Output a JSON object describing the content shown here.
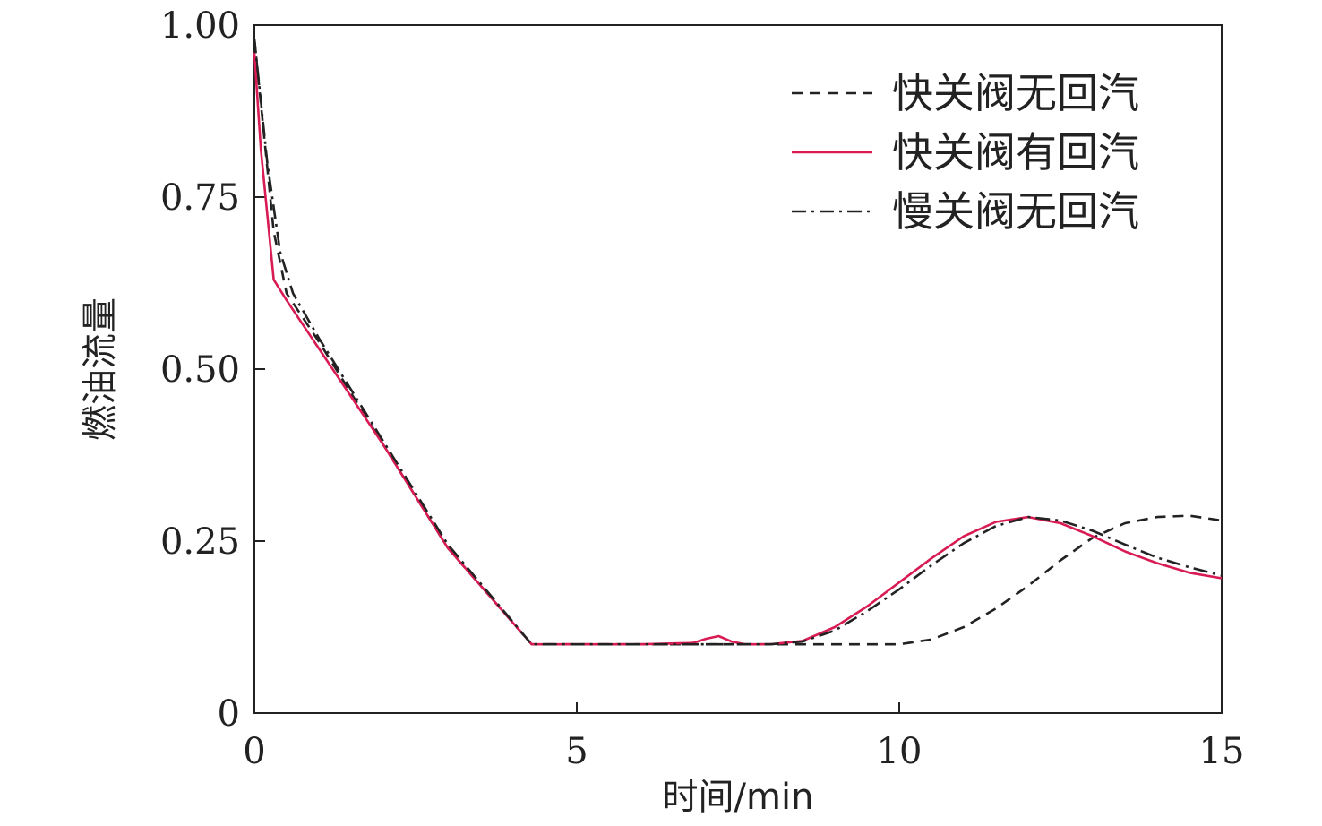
{
  "chart_data": {
    "type": "line",
    "xlabel": "时间/min",
    "ylabel": "燃油流量",
    "xlim": [
      0,
      15
    ],
    "ylim": [
      0,
      1.0
    ],
    "xticks": [
      0,
      5,
      10,
      15
    ],
    "xtick_labels": [
      "0",
      "5",
      "10",
      "15"
    ],
    "yticks": [
      0,
      0.25,
      0.5,
      0.75,
      1.0
    ],
    "ytick_labels": [
      "0",
      "0.25",
      "0.50",
      "0.75",
      "1.00"
    ],
    "grid": false,
    "legend_position": "top-right",
    "series": [
      {
        "name": "快关阀无回汽",
        "color": "#222222",
        "dash": "dashed",
        "x": [
          0,
          0.3,
          0.5,
          1.0,
          2.0,
          3.0,
          4.3,
          5.0,
          6.0,
          7.0,
          8.0,
          9.0,
          10.0,
          10.5,
          11.0,
          11.5,
          12.0,
          12.5,
          13.0,
          13.5,
          14.0,
          14.5,
          15.0
        ],
        "y": [
          0.98,
          0.7,
          0.61,
          0.54,
          0.39,
          0.24,
          0.1,
          0.1,
          0.1,
          0.1,
          0.1,
          0.1,
          0.1,
          0.107,
          0.125,
          0.152,
          0.185,
          0.222,
          0.255,
          0.276,
          0.285,
          0.287,
          0.28
        ]
      },
      {
        "name": "快关阀有回汽",
        "color": "#d81b53",
        "dash": "solid",
        "x": [
          0,
          0.1,
          0.3,
          0.5,
          1.0,
          2.0,
          3.0,
          4.3,
          5.0,
          6.0,
          6.8,
          7.0,
          7.2,
          7.4,
          7.6,
          8.0,
          8.5,
          9.0,
          9.5,
          10.0,
          10.5,
          11.0,
          11.5,
          12.0,
          12.5,
          13.0,
          13.5,
          14.0,
          14.5,
          15.0
        ],
        "y": [
          0.96,
          0.82,
          0.63,
          0.6,
          0.53,
          0.39,
          0.24,
          0.1,
          0.1,
          0.1,
          0.102,
          0.108,
          0.112,
          0.104,
          0.1,
          0.1,
          0.105,
          0.125,
          0.155,
          0.19,
          0.225,
          0.257,
          0.278,
          0.285,
          0.276,
          0.257,
          0.235,
          0.218,
          0.204,
          0.196
        ]
      },
      {
        "name": "慢关阀无回汽",
        "color": "#222222",
        "dash": "dashdot",
        "x": [
          0,
          0.2,
          0.4,
          0.6,
          1.0,
          2.0,
          3.0,
          4.3,
          5.0,
          6.0,
          7.0,
          8.0,
          8.5,
          9.0,
          9.5,
          10.0,
          10.5,
          11.0,
          11.5,
          12.0,
          12.5,
          13.0,
          13.5,
          14.0,
          14.5,
          15.0
        ],
        "y": [
          0.98,
          0.8,
          0.67,
          0.61,
          0.545,
          0.395,
          0.245,
          0.1,
          0.1,
          0.1,
          0.1,
          0.1,
          0.104,
          0.12,
          0.148,
          0.18,
          0.215,
          0.247,
          0.272,
          0.285,
          0.28,
          0.265,
          0.245,
          0.226,
          0.212,
          0.2
        ]
      }
    ]
  }
}
